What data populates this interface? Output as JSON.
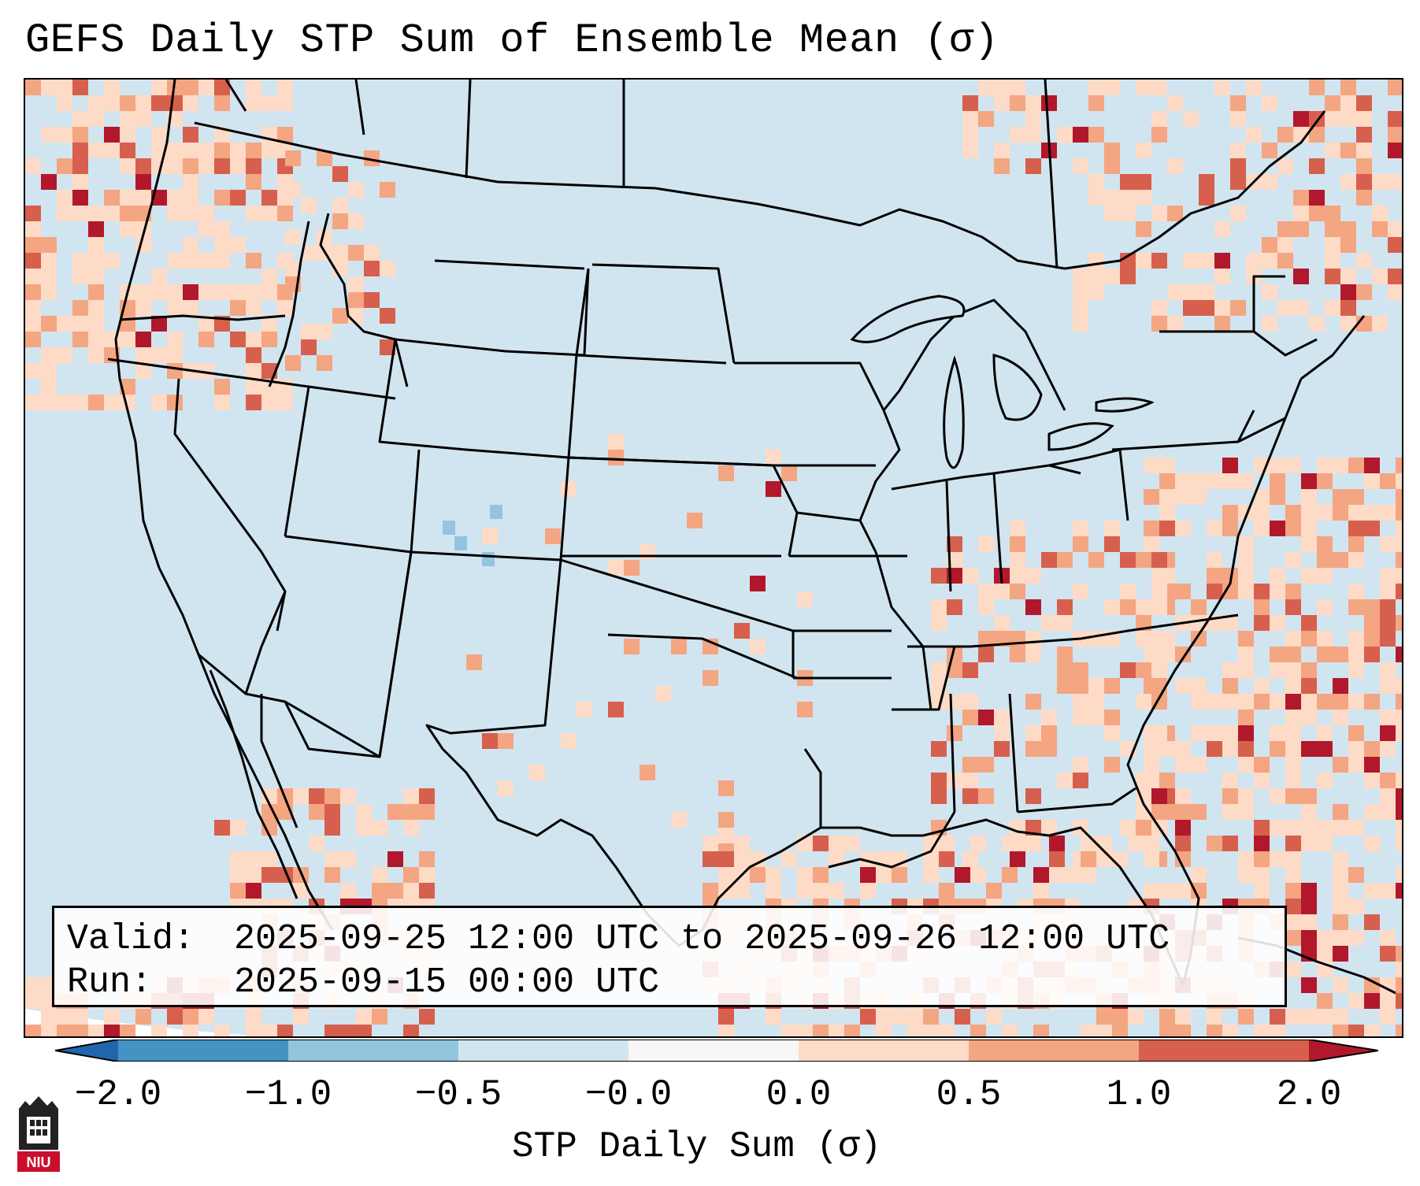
{
  "title": "GEFS Daily STP Sum of Ensemble Mean (σ)",
  "map": {
    "projection": "Lambert conformal, CONUS",
    "ocean_color": "#d1e5f0",
    "line_color": "#000000"
  },
  "info": {
    "valid_label": "Valid:",
    "valid_value": "2025-09-25 12:00 UTC to 2025-09-26 12:00 UTC",
    "run_label": "Run:",
    "run_value": "2025-09-15 00:00 UTC"
  },
  "colorbar": {
    "label": "STP Daily Sum (σ)",
    "ticks": [
      "−2.0",
      "−1.0",
      "−0.5",
      "−0.0",
      "0.0",
      "0.5",
      "1.0",
      "2.0"
    ],
    "colors": {
      "under": "#2166ac",
      "c1": "#4393c3",
      "c2": "#92c5de",
      "c3": "#d1e5f0",
      "c4": "#f7f7f7",
      "c5": "#fddbc7",
      "c6": "#f4a582",
      "c7": "#d6604d",
      "over": "#b2182b"
    }
  },
  "logo": {
    "text": "NIU"
  }
}
